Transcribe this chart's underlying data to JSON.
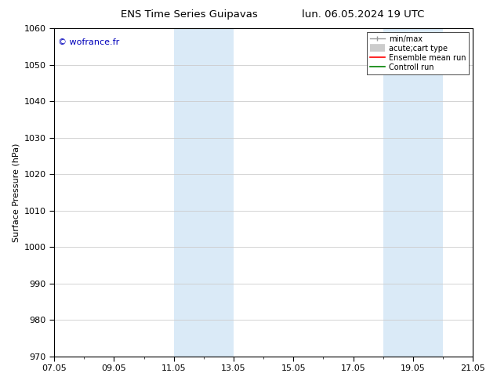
{
  "title_left": "ENS Time Series Guipavas",
  "title_right": "lun. 06.05.2024 19 UTC",
  "ylabel": "Surface Pressure (hPa)",
  "ylim": [
    970,
    1060
  ],
  "yticks": [
    970,
    980,
    990,
    1000,
    1010,
    1020,
    1030,
    1040,
    1050,
    1060
  ],
  "xlim": [
    0,
    14
  ],
  "xticks": [
    "07.05",
    "09.05",
    "11.05",
    "13.05",
    "15.05",
    "17.05",
    "19.05",
    "21.05"
  ],
  "xtick_positions": [
    0,
    2,
    4,
    6,
    8,
    10,
    12,
    14
  ],
  "shaded_bands": [
    {
      "x_start": 4.0,
      "x_end": 5.0,
      "color": "#daeaf7"
    },
    {
      "x_start": 5.0,
      "x_end": 6.0,
      "color": "#daeaf7"
    },
    {
      "x_start": 11.0,
      "x_end": 12.0,
      "color": "#daeaf7"
    },
    {
      "x_start": 12.0,
      "x_end": 13.0,
      "color": "#daeaf7"
    }
  ],
  "watermark": "© wofrance.fr",
  "watermark_color": "#0000bb",
  "background_color": "#ffffff",
  "legend_items": [
    {
      "label": "min/max",
      "color": "#999999",
      "lw": 1.0
    },
    {
      "label": "acute;cart type",
      "color": "#cccccc",
      "lw": 7
    },
    {
      "label": "Ensemble mean run",
      "color": "#ff0000",
      "lw": 1.2
    },
    {
      "label": "Controll run",
      "color": "#008000",
      "lw": 1.2
    }
  ],
  "title_fontsize": 9.5,
  "ylabel_fontsize": 8,
  "tick_fontsize": 8,
  "watermark_fontsize": 8,
  "legend_fontsize": 7
}
